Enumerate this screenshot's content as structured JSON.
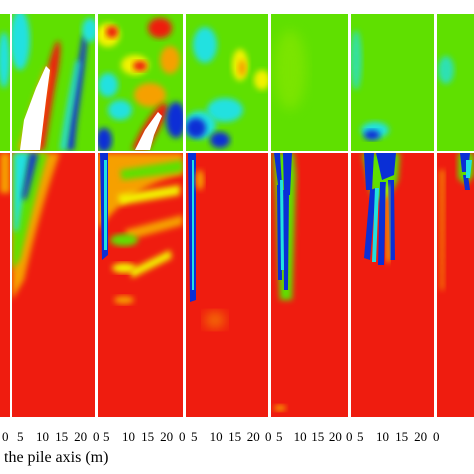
{
  "figure": {
    "axis_title": "the pile axis (m)",
    "tick_labels": [
      "0",
      "5",
      "10",
      "15",
      "20"
    ],
    "first_column_tick_labels": [
      "0"
    ],
    "colormap": {
      "red": "#ef1c0f",
      "orange": "#f6a000",
      "yellow": "#f2f200",
      "green": "#5fe000",
      "cyan": "#21e1e0",
      "blue": "#0a2fd6",
      "white": "#ffffff"
    },
    "panels_count": 6
  }
}
